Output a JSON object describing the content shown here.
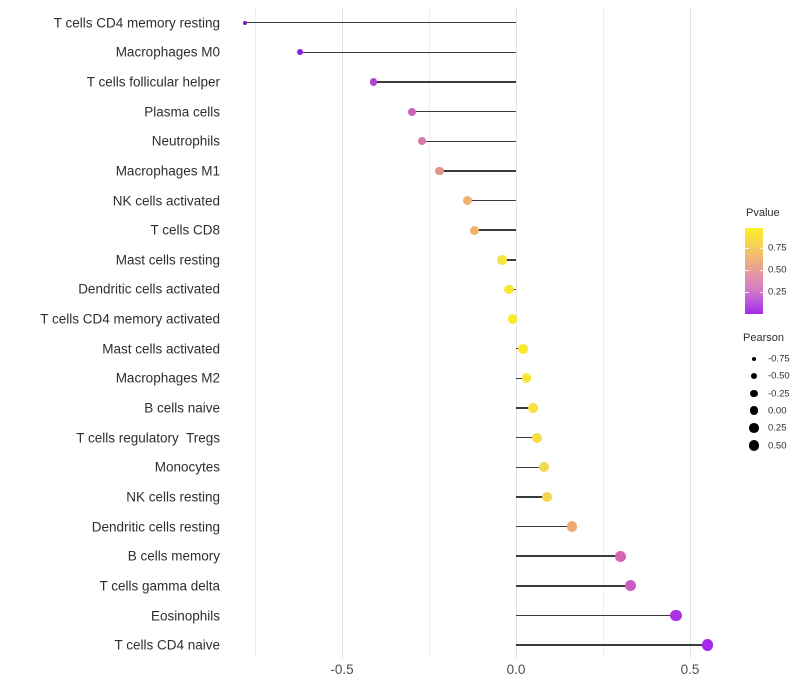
{
  "chart_data": {
    "type": "scatter",
    "subtype": "horizontal-lollipop",
    "title": "",
    "xlabel": "",
    "ylabel": "",
    "xlim": [
      -0.83,
      0.63
    ],
    "x_tick_values": [
      -0.5,
      0.0,
      0.5
    ],
    "x_tick_labels": [
      "-0.5",
      "0.0",
      "0.5"
    ],
    "grid_major_values": [
      -0.5,
      0.0,
      0.5
    ],
    "grid_minor_values": [
      -0.75,
      -0.25,
      0.25
    ],
    "stem_color": "#3a3a3a",
    "points": [
      {
        "label": "T cells CD4 memory resting",
        "pearson": -0.78,
        "color": "#7a16cb"
      },
      {
        "label": "Macrophages M0",
        "pearson": -0.62,
        "color": "#8d22db"
      },
      {
        "label": "T cells follicular helper",
        "pearson": -0.41,
        "color": "#ad46d4"
      },
      {
        "label": "Plasma cells",
        "pearson": -0.3,
        "color": "#cd63b5"
      },
      {
        "label": "Neutrophils",
        "pearson": -0.27,
        "color": "#d778a7"
      },
      {
        "label": "Macrophages M1",
        "pearson": -0.22,
        "color": "#e2938b"
      },
      {
        "label": "NK cells activated",
        "pearson": -0.14,
        "color": "#ecb26e"
      },
      {
        "label": "T cells CD8",
        "pearson": -0.12,
        "color": "#edb46a"
      },
      {
        "label": "Mast cells resting",
        "pearson": -0.04,
        "color": "#f6e53c"
      },
      {
        "label": "Dendritic cells activated",
        "pearson": -0.02,
        "color": "#f8e832"
      },
      {
        "label": "T cells CD4 memory activated",
        "pearson": -0.01,
        "color": "#f9ea2d"
      },
      {
        "label": "Mast cells activated",
        "pearson": 0.02,
        "color": "#f8e930"
      },
      {
        "label": "Macrophages M2",
        "pearson": 0.03,
        "color": "#f7e636"
      },
      {
        "label": "B cells naive",
        "pearson": 0.05,
        "color": "#f6e13e"
      },
      {
        "label": "T cells regulatory  Tregs",
        "pearson": 0.06,
        "color": "#f5dc46"
      },
      {
        "label": "Monocytes",
        "pearson": 0.08,
        "color": "#f4d84e"
      },
      {
        "label": "NK cells resting",
        "pearson": 0.09,
        "color": "#f3d54f"
      },
      {
        "label": "Dendritic cells resting",
        "pearson": 0.16,
        "color": "#eda76f"
      },
      {
        "label": "B cells memory",
        "pearson": 0.3,
        "color": "#d466b3"
      },
      {
        "label": "T cells gamma delta",
        "pearson": 0.33,
        "color": "#cb5dc1"
      },
      {
        "label": "Eosinophils",
        "pearson": 0.46,
        "color": "#ab34e2"
      },
      {
        "label": "T cells CD4 naive",
        "pearson": 0.55,
        "color": "#a628e8"
      }
    ],
    "legend_color": {
      "title": "Pvalue",
      "tick_labels": [
        "0.75",
        "0.50",
        "0.25"
      ],
      "tick_values": [
        0.75,
        0.5,
        0.25
      ],
      "range": [
        0,
        0.98
      ],
      "gradient_top_to_bottom": [
        "#fbf028",
        "#f6d254",
        "#efac82",
        "#e292ac",
        "#d47cc6",
        "#bc55dc",
        "#a32be6"
      ],
      "position": "right"
    },
    "legend_size": {
      "title": "Pearson",
      "labels": [
        "-0.75",
        "-0.50",
        "-0.25",
        "0.00",
        "0.25",
        "0.50"
      ],
      "values": [
        -0.75,
        -0.5,
        -0.25,
        0.0,
        0.25,
        0.5
      ],
      "dot_color": "#000000",
      "position": "right"
    }
  }
}
